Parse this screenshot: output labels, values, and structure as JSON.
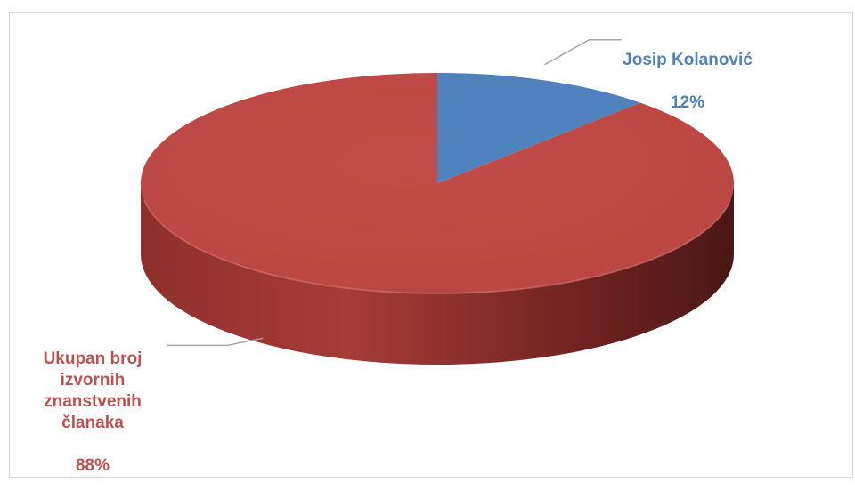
{
  "chart_data": {
    "type": "pie",
    "title": "",
    "categories": [
      "Josip Kolanović",
      "Ukupan broj izvornih znanstvenih članaka"
    ],
    "values": [
      12,
      88
    ],
    "value_labels": [
      "12%",
      "88%"
    ],
    "colors": [
      "#4f81bd",
      "#c0504d"
    ],
    "style": "3d",
    "legend": "none",
    "grid": false
  },
  "labels": [
    {
      "name": "Josip Kolanović",
      "percent": "12%"
    },
    {
      "name": "Ukupan broj\nizvornih\nznanstvenih\nčlanaka",
      "percent": "88%"
    }
  ]
}
